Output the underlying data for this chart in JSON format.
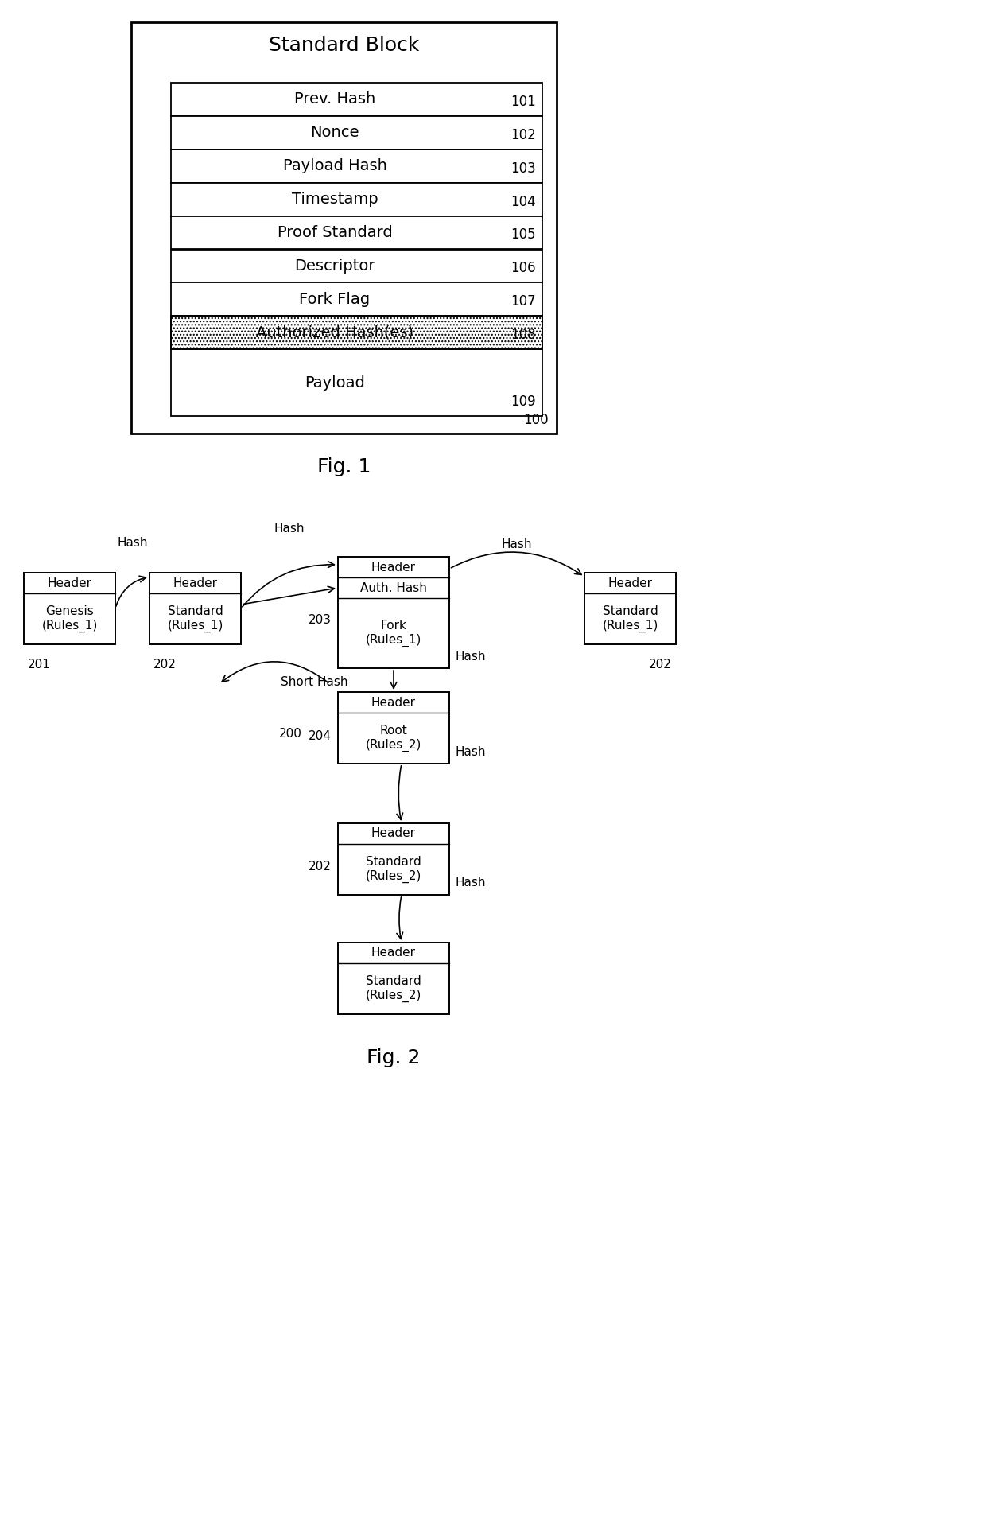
{
  "fig_width": 12.4,
  "fig_height": 19.21,
  "bg_color": "#ffffff",
  "fig1": {
    "title": "Standard Block",
    "rows": [
      {
        "label": "Prev. Hash",
        "ref": "101",
        "hatched": false,
        "tall": false
      },
      {
        "label": "Nonce",
        "ref": "102",
        "hatched": false,
        "tall": false
      },
      {
        "label": "Payload Hash",
        "ref": "103",
        "hatched": false,
        "tall": false
      },
      {
        "label": "Timestamp",
        "ref": "104",
        "hatched": false,
        "tall": false
      },
      {
        "label": "Proof Standard",
        "ref": "105",
        "hatched": false,
        "tall": false
      },
      {
        "label": "Descriptor",
        "ref": "106",
        "hatched": false,
        "tall": false
      },
      {
        "label": "Fork Flag",
        "ref": "107",
        "hatched": false,
        "tall": false
      },
      {
        "label": "Authorized Hash(es)",
        "ref": "108",
        "hatched": true,
        "tall": false
      },
      {
        "label": "Payload",
        "ref": "109",
        "hatched": false,
        "tall": true
      }
    ],
    "outer_ref": "100",
    "fig_label": "Fig. 1"
  },
  "fig2": {
    "fig_label": "Fig. 2"
  }
}
